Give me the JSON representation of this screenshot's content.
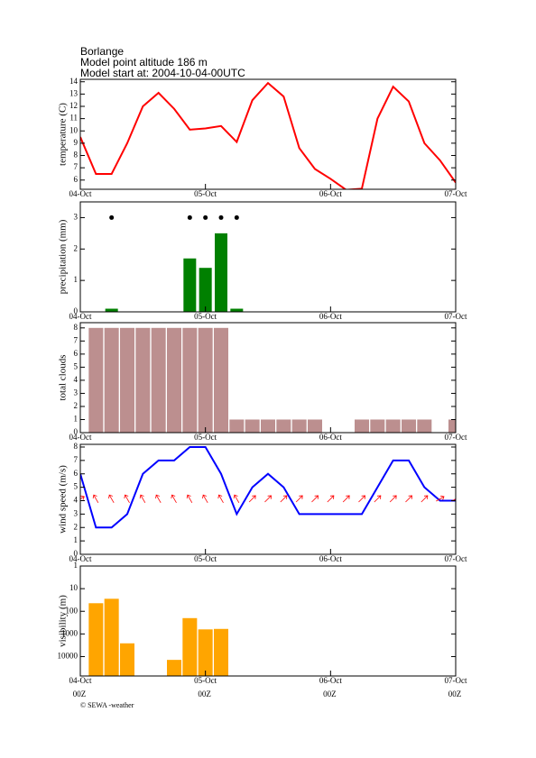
{
  "header": {
    "location": "Borlange",
    "altitude": "Model point altitude  186 m",
    "model_start": "Model start at: 2004-10-04-00UTC"
  },
  "footer": "© SEWA -weather",
  "chart_data": [
    {
      "type": "line",
      "ylabel": "temperature (C)",
      "color": "#ff0000",
      "x": [
        0,
        3,
        6,
        9,
        12,
        15,
        18,
        21,
        24,
        27,
        30,
        33,
        36,
        39,
        42,
        45,
        48,
        51,
        54,
        57,
        60,
        63,
        66,
        69,
        72
      ],
      "values": [
        9.5,
        6.5,
        6.5,
        9,
        12,
        13.1,
        11.8,
        10.1,
        10.2,
        10.4,
        9.1,
        12.5,
        13.9,
        12.8,
        8.6,
        6.9,
        6.1,
        5.2,
        5.3,
        11,
        13.6,
        12.4,
        9,
        7.6,
        5.8
      ],
      "xlim": [
        0,
        72
      ],
      "ylim": [
        5.25,
        14.2
      ],
      "yticks": [
        6,
        7,
        8,
        9,
        10,
        11,
        12,
        13,
        14
      ],
      "xticks": [
        {
          "value": 0,
          "label": "04-Oct"
        },
        {
          "value": 24,
          "label": "05-Oct"
        },
        {
          "value": 48,
          "label": "06-Oct"
        },
        {
          "value": 72,
          "label": "07-Oct"
        }
      ]
    },
    {
      "type": "bar",
      "ylabel": "precipitation (mm)",
      "color": "#008000",
      "x": [
        6,
        21,
        24,
        27,
        30
      ],
      "values": [
        0.1,
        1.7,
        1.4,
        2.5,
        0.1
      ],
      "markers": {
        "x": [
          6,
          21,
          24,
          27,
          30
        ],
        "values": [
          3,
          3,
          3,
          3,
          3
        ],
        "color": "#000000"
      },
      "xlim": [
        0,
        72
      ],
      "ylim": [
        0,
        3.5
      ],
      "yticks": [
        0,
        1,
        2,
        3
      ],
      "xticks": [
        {
          "value": 0,
          "label": "04-Oct"
        },
        {
          "value": 24,
          "label": "05-Oct"
        },
        {
          "value": 48,
          "label": "06-Oct"
        },
        {
          "value": 72,
          "label": "07-Oct"
        }
      ]
    },
    {
      "type": "bar",
      "ylabel": "total clouds",
      "color": "#bc8f8f",
      "x": [
        3,
        6,
        9,
        12,
        15,
        18,
        21,
        24,
        27,
        30,
        33,
        36,
        39,
        42,
        45,
        48,
        51,
        54,
        57,
        60,
        63,
        66,
        69,
        72
      ],
      "values": [
        8,
        8,
        8,
        8,
        8,
        8,
        8,
        8,
        8,
        1,
        1,
        1,
        1,
        1,
        1,
        0,
        0,
        1,
        1,
        1,
        1,
        1,
        0,
        1
      ],
      "xlim": [
        0,
        72
      ],
      "ylim": [
        0,
        8.4
      ],
      "yticks": [
        0,
        1,
        2,
        3,
        4,
        5,
        6,
        7,
        8
      ],
      "xticks": [
        {
          "value": 0,
          "label": "04-Oct"
        },
        {
          "value": 24,
          "label": "05-Oct"
        },
        {
          "value": 48,
          "label": "06-Oct"
        },
        {
          "value": 72,
          "label": "07-Oct"
        }
      ]
    },
    {
      "type": "line",
      "ylabel": "wind speed (m/s)",
      "color": "#0000ff",
      "x": [
        0,
        3,
        6,
        9,
        12,
        15,
        18,
        21,
        24,
        27,
        30,
        33,
        36,
        39,
        42,
        45,
        48,
        51,
        54,
        57,
        60,
        63,
        66,
        69,
        72
      ],
      "values": [
        6,
        2,
        2,
        3,
        6,
        7,
        7,
        8,
        8,
        6,
        3,
        5,
        6,
        5,
        3,
        3,
        3,
        3,
        3,
        5,
        7,
        7,
        5,
        4,
        4
      ],
      "wind_direction": [
        60,
        330,
        330,
        330,
        330,
        330,
        330,
        330,
        330,
        330,
        330,
        45,
        45,
        45,
        45,
        45,
        45,
        45,
        45,
        45,
        45,
        45,
        45,
        60,
        60
      ],
      "arrow_color": "#ff0000",
      "xlim": [
        0,
        72
      ],
      "ylim": [
        0,
        8.2
      ],
      "yticks": [
        0,
        1,
        2,
        3,
        4,
        5,
        6,
        7,
        8
      ],
      "xticks": [
        {
          "value": 0,
          "label": "04-Oct"
        },
        {
          "value": 24,
          "label": "05-Oct"
        },
        {
          "value": 48,
          "label": "06-Oct"
        },
        {
          "value": 72,
          "label": "07-Oct"
        }
      ]
    },
    {
      "type": "bar",
      "ylabel": "visibility (m)",
      "color": "#ffa500",
      "log": true,
      "x": [
        3,
        6,
        9,
        18,
        21,
        24,
        27
      ],
      "values": [
        44,
        28,
        2600,
        14000,
        200,
        630,
        600
      ],
      "xlim": [
        0,
        72
      ],
      "ylim": [
        72000,
        1
      ],
      "yticks": [
        1,
        10,
        100,
        1000,
        10000
      ],
      "xticks": [
        {
          "value": 0,
          "label": "04-Oct"
        },
        {
          "value": 24,
          "label": "05-Oct"
        },
        {
          "value": 48,
          "label": "06-Oct"
        },
        {
          "value": 72,
          "label": "07-Oct"
        }
      ],
      "x_sublabels": [
        "00Z",
        "00Z",
        "00Z",
        "00Z"
      ]
    }
  ]
}
